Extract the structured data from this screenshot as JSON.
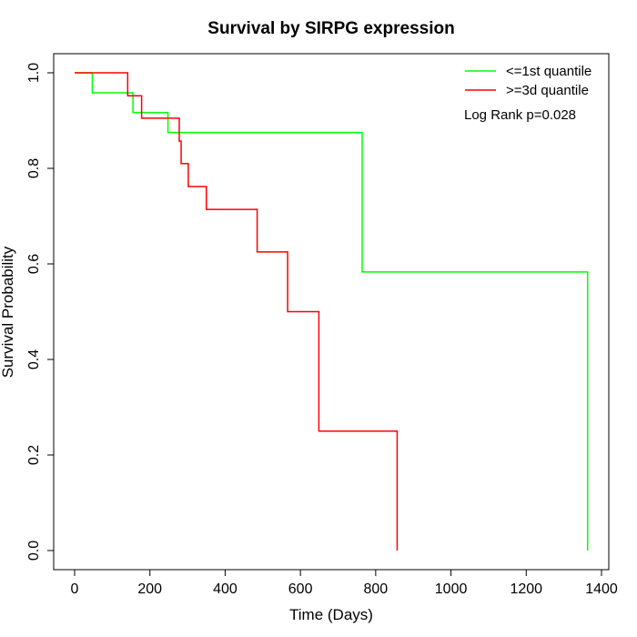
{
  "chart_data": {
    "type": "line",
    "title": "Survival by SIRPG expression",
    "xlabel": "Time (Days)",
    "ylabel": "Survival Probability",
    "xlim": [
      0,
      1400
    ],
    "ylim": [
      0,
      1.0
    ],
    "x_ticks": [
      "0",
      "200",
      "400",
      "600",
      "800",
      "1000",
      "1200",
      "1400"
    ],
    "x_tick_values": [
      0,
      200,
      400,
      600,
      800,
      1000,
      1200,
      1400
    ],
    "y_ticks": [
      "0.0",
      "0.2",
      "0.4",
      "0.6",
      "0.8",
      "1.0"
    ],
    "y_tick_values": [
      0,
      0.2,
      0.4,
      0.6,
      0.8,
      1.0
    ],
    "grid": false,
    "legend_position": "top-right",
    "annotation": "Log Rank p=0.028",
    "series": [
      {
        "name": "<=1st quantile",
        "color": "#00ff00",
        "steps": [
          [
            0,
            1.0
          ],
          [
            47,
            0.958
          ],
          [
            155,
            0.917
          ],
          [
            248,
            0.875
          ],
          [
            764,
            0.583
          ],
          [
            1363,
            0.0
          ]
        ]
      },
      {
        "name": ">=3d quantile",
        "color": "#ff0000",
        "steps": [
          [
            0,
            1.0
          ],
          [
            141,
            0.952
          ],
          [
            178,
            0.905
          ],
          [
            278,
            0.857
          ],
          [
            283,
            0.81
          ],
          [
            302,
            0.762
          ],
          [
            350,
            0.714
          ],
          [
            485,
            0.625
          ],
          [
            566,
            0.5
          ],
          [
            649,
            0.25
          ],
          [
            857,
            0.0
          ]
        ]
      }
    ]
  }
}
